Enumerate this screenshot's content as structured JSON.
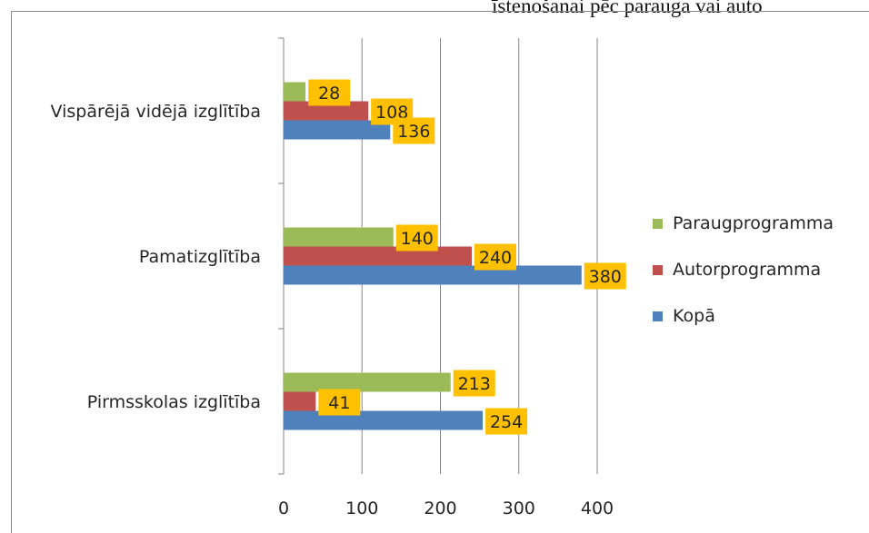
{
  "header_text": "īstenošanai pēc parauga vai auto",
  "chart_data": {
    "type": "bar",
    "orientation": "horizontal",
    "categories": [
      "Vispārējā vidējā izglītība",
      "Pamatizglītība",
      "Pirmsskolas izglītība"
    ],
    "series": [
      {
        "name": "Paraugprogramma",
        "color": "#9bbb59",
        "values": [
          28,
          140,
          213
        ]
      },
      {
        "name": "Autorprogramma",
        "color": "#c0504d",
        "values": [
          108,
          240,
          41
        ]
      },
      {
        "name": "Kopā",
        "color": "#4f81bd",
        "values": [
          136,
          380,
          254
        ]
      }
    ],
    "xlim": [
      0,
      400
    ],
    "xticks": [
      "0",
      "100",
      "200",
      "300",
      "400"
    ],
    "grid": true,
    "legend_position": "right",
    "data_label_color": "#ffc000",
    "title": "",
    "xlabel": "",
    "ylabel": ""
  }
}
